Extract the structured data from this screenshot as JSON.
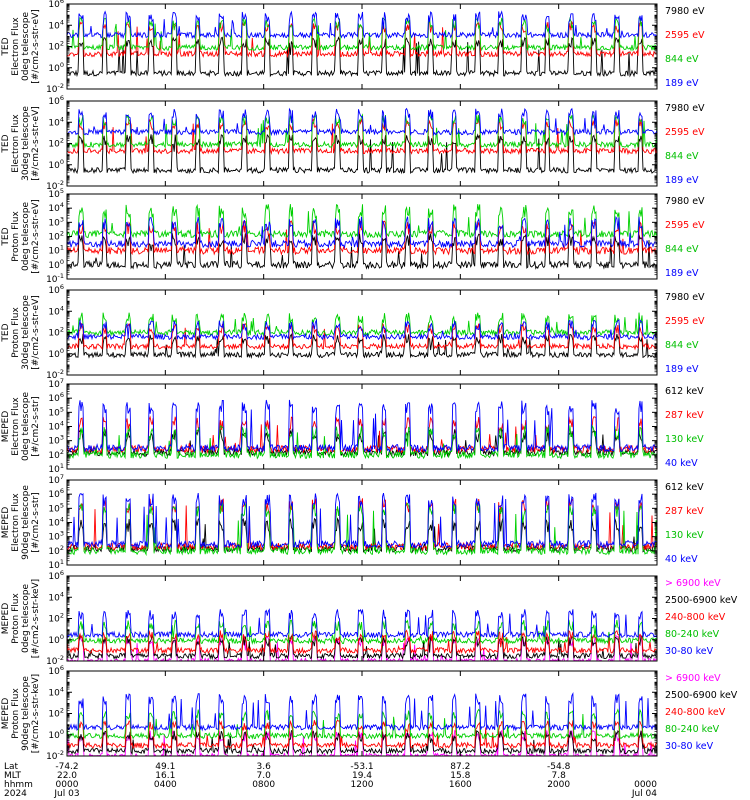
{
  "chart_data": [
    {
      "type": "line",
      "ylabel_lines": [
        "TED",
        "Electron Flux",
        "0deg telescope",
        "[#/cm2-s-str-eV]"
      ],
      "yscale": "log",
      "ylim": [
        0.01,
        1000000.0
      ],
      "yticks": [
        "10^-2",
        "10^0",
        "10^2",
        "10^4",
        "10^6"
      ],
      "series": [
        {
          "name": "7980 eV",
          "color": "#000000",
          "baseline": 0.3,
          "spike": 300
        },
        {
          "name": "2595 eV",
          "color": "#ff0000",
          "baseline": 20,
          "spike": 8000
        },
        {
          "name": "844 eV",
          "color": "#00d000",
          "baseline": 80,
          "spike": 20000
        },
        {
          "name": "189 eV",
          "color": "#0000ff",
          "baseline": 1200,
          "spike": 80000
        }
      ]
    },
    {
      "type": "line",
      "ylabel_lines": [
        "TED",
        "Electron Flux",
        "30deg telescope",
        "[#/cm2-s-str-eV]"
      ],
      "yscale": "log",
      "ylim": [
        0.01,
        1000000.0
      ],
      "yticks": [
        "10^-2",
        "10^0",
        "10^2",
        "10^4",
        "10^6"
      ],
      "series": [
        {
          "name": "7980 eV",
          "color": "#000000",
          "baseline": 0.3,
          "spike": 300
        },
        {
          "name": "2595 eV",
          "color": "#ff0000",
          "baseline": 20,
          "spike": 8000
        },
        {
          "name": "844 eV",
          "color": "#00d000",
          "baseline": 80,
          "spike": 20000
        },
        {
          "name": "189 eV",
          "color": "#0000ff",
          "baseline": 1200,
          "spike": 80000
        }
      ]
    },
    {
      "type": "line",
      "ylabel_lines": [
        "TED",
        "Proton Flux",
        "0deg telescope",
        "[#/cm2-s-str-eV]"
      ],
      "yscale": "log",
      "ylim": [
        0.1,
        100000.0
      ],
      "yticks": [
        "10^-1",
        "10^0",
        "10^1",
        "10^2",
        "10^3",
        "10^4",
        "10^5"
      ],
      "series": [
        {
          "name": "7980 eV",
          "color": "#000000",
          "baseline": 1,
          "spike": 80
        },
        {
          "name": "2595 eV",
          "color": "#ff0000",
          "baseline": 10,
          "spike": 500
        },
        {
          "name": "844 eV",
          "color": "#00d000",
          "baseline": 150,
          "spike": 8000
        },
        {
          "name": "189 eV",
          "color": "#0000ff",
          "baseline": 30,
          "spike": 1000
        }
      ]
    },
    {
      "type": "line",
      "ylabel_lines": [
        "TED",
        "Proton Flux",
        "30deg telescope",
        "[#/cm2-s-str-eV]"
      ],
      "yscale": "log",
      "ylim": [
        0.01,
        1000000.0
      ],
      "yticks": [
        "10^-2",
        "10^0",
        "10^2",
        "10^4",
        "10^6"
      ],
      "series": [
        {
          "name": "7980 eV",
          "color": "#000000",
          "baseline": 0.8,
          "spike": 30
        },
        {
          "name": "2595 eV",
          "color": "#ff0000",
          "baseline": 5,
          "spike": 300
        },
        {
          "name": "844 eV",
          "color": "#00d000",
          "baseline": 100,
          "spike": 3000
        },
        {
          "name": "189 eV",
          "color": "#0000ff",
          "baseline": 40,
          "spike": 600
        }
      ]
    },
    {
      "type": "line",
      "ylabel_lines": [
        "MEPED",
        "Electron Flux",
        "0deg telescope",
        "[#/cm2-s-str]"
      ],
      "yscale": "log",
      "ylim": [
        10.0,
        10000000.0
      ],
      "yticks": [
        "10^1",
        "10^2",
        "10^3",
        "10^4",
        "10^5",
        "10^6",
        "10^7"
      ],
      "series": [
        {
          "name": "612 keV",
          "color": "#000000",
          "baseline": 150,
          "spike": 3000
        },
        {
          "name": "287 keV",
          "color": "#ff0000",
          "baseline": 250,
          "spike": 20000
        },
        {
          "name": "130 keV",
          "color": "#00d000",
          "baseline": 100,
          "spike": 5000
        },
        {
          "name": "40 keV",
          "color": "#0000ff",
          "baseline": 300,
          "spike": 300000
        }
      ]
    },
    {
      "type": "line",
      "ylabel_lines": [
        "MEPED",
        "Electron Flux",
        "90deg telescope",
        "[#/cm2-s-str]"
      ],
      "yscale": "log",
      "ylim": [
        10.0,
        10000000.0
      ],
      "yticks": [
        "10^1",
        "10^2",
        "10^3",
        "10^4",
        "10^5",
        "10^6",
        "10^7"
      ],
      "series": [
        {
          "name": "612 keV",
          "color": "#000000",
          "baseline": 150,
          "spike": 8000
        },
        {
          "name": "287 keV",
          "color": "#ff0000",
          "baseline": 200,
          "spike": 200000
        },
        {
          "name": "130 keV",
          "color": "#00d000",
          "baseline": 100,
          "spike": 100000
        },
        {
          "name": "40 keV",
          "color": "#0000ff",
          "baseline": 300,
          "spike": 500000
        }
      ]
    },
    {
      "type": "line",
      "ylabel_lines": [
        "MEPED",
        "Proton Flux",
        "0deg telescope",
        "[#/cm2-s-str-keV]"
      ],
      "yscale": "log",
      "ylim": [
        0.01,
        1000000.0
      ],
      "yticks": [
        "10^-2",
        "10^0",
        "10^2",
        "10^4",
        "10^6"
      ],
      "series": [
        {
          "name": "> 6900 keV",
          "color": "#ff00ff",
          "baseline": 0.01,
          "spike": 1
        },
        {
          "name": "2500-6900 keV",
          "color": "#000000",
          "baseline": 0.03,
          "spike": 1
        },
        {
          "name": "240-800 keV",
          "color": "#ff0000",
          "baseline": 0.1,
          "spike": 3
        },
        {
          "name": "80-240 keV",
          "color": "#00d000",
          "baseline": 0.8,
          "spike": 30
        },
        {
          "name": "30-80 keV",
          "color": "#0000ff",
          "baseline": 3,
          "spike": 300
        }
      ]
    },
    {
      "type": "line",
      "ylabel_lines": [
        "MEPED",
        "Proton Flux",
        "90deg telescope",
        "[#/cm2-s-str-keV]"
      ],
      "yscale": "log",
      "ylim": [
        0.01,
        1000000.0
      ],
      "yticks": [
        "10^-2",
        "10^0",
        "10^2",
        "10^4",
        "10^6"
      ],
      "series": [
        {
          "name": "> 6900 keV",
          "color": "#ff00ff",
          "baseline": 0.01,
          "spike": 1
        },
        {
          "name": "2500-6900 keV",
          "color": "#000000",
          "baseline": 0.03,
          "spike": 1
        },
        {
          "name": "240-800 keV",
          "color": "#ff0000",
          "baseline": 0.1,
          "spike": 10
        },
        {
          "name": "80-240 keV",
          "color": "#00d000",
          "baseline": 0.8,
          "spike": 100
        },
        {
          "name": "30-80 keV",
          "color": "#0000ff",
          "baseline": 5,
          "spike": 3000
        }
      ]
    }
  ],
  "x_axis": {
    "row_labels": [
      "Lat",
      "MLT",
      "hhmm",
      "2024"
    ],
    "ticks": [
      {
        "lat": "-74.2",
        "mlt": "22.0",
        "time": "0000",
        "date": "Jul 03"
      },
      {
        "lat": "49.1",
        "mlt": "16.1",
        "time": "0400",
        "date": ""
      },
      {
        "lat": "3.6",
        "mlt": "7.0",
        "time": "0800",
        "date": ""
      },
      {
        "lat": "-53.1",
        "mlt": "19.4",
        "time": "1200",
        "date": ""
      },
      {
        "lat": "87.2",
        "mlt": "15.8",
        "time": "1600",
        "date": ""
      },
      {
        "lat": "-54.8",
        "mlt": "7.8",
        "time": "2000",
        "date": ""
      },
      {
        "lat": "",
        "mlt": "",
        "time": "0000",
        "date": "Jul 04"
      }
    ]
  }
}
